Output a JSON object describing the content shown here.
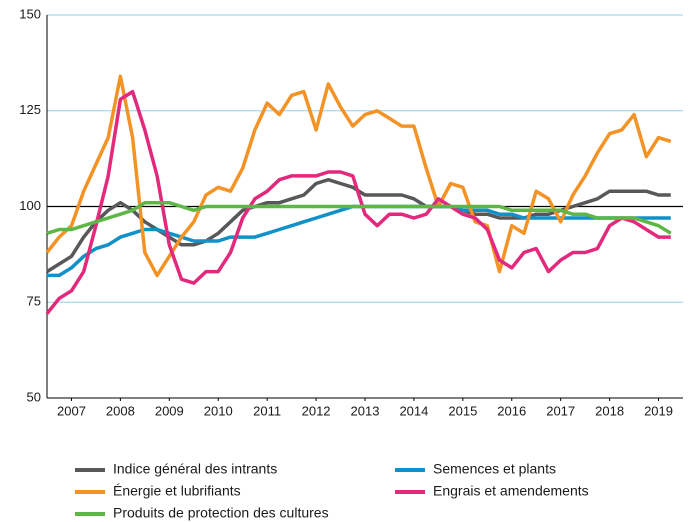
{
  "chart_data": {
    "type": "line",
    "x": [
      2007,
      2007.25,
      2007.5,
      2007.75,
      2008,
      2008.25,
      2008.5,
      2008.75,
      2009,
      2009.25,
      2009.5,
      2009.75,
      2010,
      2010.25,
      2010.5,
      2010.75,
      2011,
      2011.25,
      2011.5,
      2011.75,
      2012,
      2012.25,
      2012.5,
      2012.75,
      2013,
      2013.25,
      2013.5,
      2013.75,
      2014,
      2014.25,
      2014.5,
      2014.75,
      2015,
      2015.25,
      2015.5,
      2015.75,
      2016,
      2016.25,
      2016.5,
      2016.75,
      2017,
      2017.25,
      2017.5,
      2017.75,
      2018,
      2018.25,
      2018.5,
      2018.75,
      2019,
      2019.25,
      2019.5,
      2019.75
    ],
    "series": [
      {
        "name": "Indice général des intrants",
        "color": "#58585a",
        "values": [
          83,
          85,
          87,
          92,
          96,
          99,
          101,
          99,
          96,
          94,
          92,
          90,
          90,
          91,
          93,
          96,
          99,
          100,
          101,
          101,
          102,
          103,
          106,
          107,
          106,
          105,
          103,
          103,
          103,
          103,
          102,
          100,
          100,
          100,
          99,
          98,
          98,
          97,
          97,
          97,
          98,
          98,
          99,
          100,
          101,
          102,
          104,
          104,
          104,
          104,
          103,
          103
        ]
      },
      {
        "name": "Semences et plants",
        "color": "#1191c8",
        "values": [
          82,
          82,
          84,
          87,
          89,
          90,
          92,
          93,
          94,
          94,
          93,
          92,
          91,
          91,
          91,
          92,
          92,
          92,
          93,
          94,
          95,
          96,
          97,
          98,
          99,
          100,
          100,
          100,
          100,
          100,
          100,
          100,
          100,
          100,
          99,
          99,
          99,
          98,
          98,
          97,
          97,
          97,
          97,
          97,
          97,
          97,
          97,
          97,
          97,
          97,
          97,
          97
        ]
      },
      {
        "name": "Énergie et lubrifiants",
        "color": "#f39325",
        "values": [
          88,
          92,
          95,
          104,
          111,
          118,
          134,
          118,
          88,
          82,
          87,
          92,
          96,
          103,
          105,
          104,
          110,
          120,
          127,
          124,
          129,
          130,
          120,
          132,
          126,
          121,
          124,
          125,
          123,
          121,
          121,
          110,
          100,
          106,
          105,
          96,
          95,
          83,
          95,
          93,
          104,
          102,
          96,
          103,
          108,
          114,
          119,
          120,
          124,
          113,
          118,
          117
        ]
      },
      {
        "name": "Engrais et amendements",
        "color": "#e2297c",
        "values": [
          72,
          76,
          78,
          83,
          95,
          108,
          128,
          130,
          120,
          108,
          90,
          81,
          80,
          83,
          83,
          88,
          97,
          102,
          104,
          107,
          108,
          108,
          108,
          109,
          109,
          108,
          98,
          95,
          98,
          98,
          97,
          98,
          102,
          100,
          98,
          97,
          94,
          86,
          84,
          88,
          89,
          83,
          86,
          88,
          88,
          89,
          95,
          97,
          96,
          94,
          92,
          92
        ]
      },
      {
        "name": "Produits de protection des cultures",
        "color": "#5db646",
        "values": [
          93,
          94,
          94,
          95,
          96,
          97,
          98,
          99,
          101,
          101,
          101,
          100,
          99,
          100,
          100,
          100,
          100,
          100,
          100,
          100,
          100,
          100,
          100,
          100,
          100,
          100,
          100,
          100,
          100,
          100,
          100,
          100,
          100,
          100,
          100,
          100,
          100,
          100,
          99,
          99,
          99,
          99,
          99,
          98,
          98,
          97,
          97,
          97,
          97,
          96,
          95,
          93
        ]
      }
    ],
    "xlim": [
      2007,
      2020
    ],
    "xticks": [
      {
        "value": 2007.5,
        "label": "2007"
      },
      {
        "value": 2008.5,
        "label": "2008"
      },
      {
        "value": 2009.5,
        "label": "2009"
      },
      {
        "value": 2010.5,
        "label": "2010"
      },
      {
        "value": 2011.5,
        "label": "2011"
      },
      {
        "value": 2012.5,
        "label": "2012"
      },
      {
        "value": 2013.5,
        "label": "2013"
      },
      {
        "value": 2014.5,
        "label": "2014"
      },
      {
        "value": 2015.5,
        "label": "2015"
      },
      {
        "value": 2016.5,
        "label": "2016"
      },
      {
        "value": 2017.5,
        "label": "2017"
      },
      {
        "value": 2018.5,
        "label": "2018"
      },
      {
        "value": 2019.5,
        "label": "2019"
      }
    ],
    "ylim": [
      50,
      150
    ],
    "yticks": [
      50,
      75,
      100,
      125,
      150
    ],
    "grid": true,
    "legend": "bottom"
  }
}
